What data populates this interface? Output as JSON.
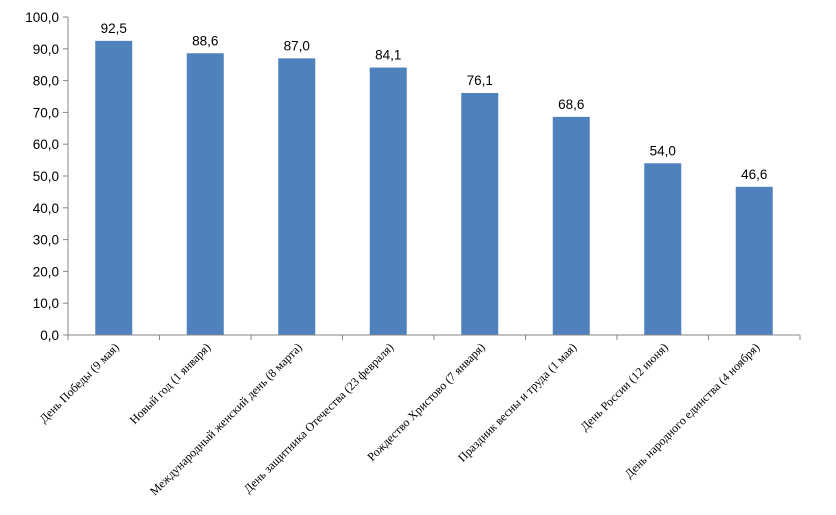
{
  "chart_data": {
    "type": "bar",
    "title": "",
    "xlabel": "",
    "ylabel": "",
    "ylim": [
      0,
      100
    ],
    "yticks": [
      0,
      10,
      20,
      30,
      40,
      50,
      60,
      70,
      80,
      90,
      100
    ],
    "ytick_labels": [
      "0,0",
      "10,0",
      "20,0",
      "30,0",
      "40,0",
      "50,0",
      "60,0",
      "70,0",
      "80,0",
      "90,0",
      "100,0"
    ],
    "categories": [
      "День Победы (9 мая)",
      "Новый год (1 января)",
      "Международный женский день (8 марта)",
      "День защитника Отечества (23 февраля)",
      "Рождество Христово (7 января)",
      "Праздник весны и труда (1 мая)",
      "День России (12 июня)",
      "День народного единства (4 ноября)"
    ],
    "values": [
      92.5,
      88.6,
      87.0,
      84.1,
      76.1,
      68.6,
      54.0,
      46.6
    ],
    "data_labels": [
      "92,5",
      "88,6",
      "87,0",
      "84,1",
      "76,1",
      "68,6",
      "54,0",
      "46,6"
    ],
    "grid": false,
    "legend": "none",
    "colors": {
      "bar": "#4f81bd",
      "axis": "#868686"
    }
  }
}
